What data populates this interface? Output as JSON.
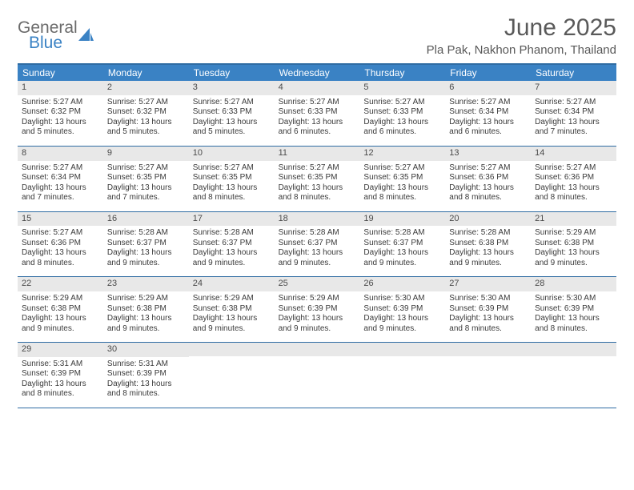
{
  "brand": {
    "line1": "General",
    "line2": "Blue"
  },
  "title": "June 2025",
  "location": "Pla Pak, Nakhon Phanom, Thailand",
  "colors": {
    "header_bg": "#3a82c4",
    "border": "#2f6ca3",
    "daynum_bg": "#e8e8e8",
    "text": "#3a3a3a",
    "title_color": "#595959"
  },
  "day_headers": [
    "Sunday",
    "Monday",
    "Tuesday",
    "Wednesday",
    "Thursday",
    "Friday",
    "Saturday"
  ],
  "weeks": [
    [
      {
        "n": "1",
        "sunrise": "5:27 AM",
        "sunset": "6:32 PM",
        "daylight": "13 hours and 5 minutes."
      },
      {
        "n": "2",
        "sunrise": "5:27 AM",
        "sunset": "6:32 PM",
        "daylight": "13 hours and 5 minutes."
      },
      {
        "n": "3",
        "sunrise": "5:27 AM",
        "sunset": "6:33 PM",
        "daylight": "13 hours and 5 minutes."
      },
      {
        "n": "4",
        "sunrise": "5:27 AM",
        "sunset": "6:33 PM",
        "daylight": "13 hours and 6 minutes."
      },
      {
        "n": "5",
        "sunrise": "5:27 AM",
        "sunset": "6:33 PM",
        "daylight": "13 hours and 6 minutes."
      },
      {
        "n": "6",
        "sunrise": "5:27 AM",
        "sunset": "6:34 PM",
        "daylight": "13 hours and 6 minutes."
      },
      {
        "n": "7",
        "sunrise": "5:27 AM",
        "sunset": "6:34 PM",
        "daylight": "13 hours and 7 minutes."
      }
    ],
    [
      {
        "n": "8",
        "sunrise": "5:27 AM",
        "sunset": "6:34 PM",
        "daylight": "13 hours and 7 minutes."
      },
      {
        "n": "9",
        "sunrise": "5:27 AM",
        "sunset": "6:35 PM",
        "daylight": "13 hours and 7 minutes."
      },
      {
        "n": "10",
        "sunrise": "5:27 AM",
        "sunset": "6:35 PM",
        "daylight": "13 hours and 8 minutes."
      },
      {
        "n": "11",
        "sunrise": "5:27 AM",
        "sunset": "6:35 PM",
        "daylight": "13 hours and 8 minutes."
      },
      {
        "n": "12",
        "sunrise": "5:27 AM",
        "sunset": "6:35 PM",
        "daylight": "13 hours and 8 minutes."
      },
      {
        "n": "13",
        "sunrise": "5:27 AM",
        "sunset": "6:36 PM",
        "daylight": "13 hours and 8 minutes."
      },
      {
        "n": "14",
        "sunrise": "5:27 AM",
        "sunset": "6:36 PM",
        "daylight": "13 hours and 8 minutes."
      }
    ],
    [
      {
        "n": "15",
        "sunrise": "5:27 AM",
        "sunset": "6:36 PM",
        "daylight": "13 hours and 8 minutes."
      },
      {
        "n": "16",
        "sunrise": "5:28 AM",
        "sunset": "6:37 PM",
        "daylight": "13 hours and 9 minutes."
      },
      {
        "n": "17",
        "sunrise": "5:28 AM",
        "sunset": "6:37 PM",
        "daylight": "13 hours and 9 minutes."
      },
      {
        "n": "18",
        "sunrise": "5:28 AM",
        "sunset": "6:37 PM",
        "daylight": "13 hours and 9 minutes."
      },
      {
        "n": "19",
        "sunrise": "5:28 AM",
        "sunset": "6:37 PM",
        "daylight": "13 hours and 9 minutes."
      },
      {
        "n": "20",
        "sunrise": "5:28 AM",
        "sunset": "6:38 PM",
        "daylight": "13 hours and 9 minutes."
      },
      {
        "n": "21",
        "sunrise": "5:29 AM",
        "sunset": "6:38 PM",
        "daylight": "13 hours and 9 minutes."
      }
    ],
    [
      {
        "n": "22",
        "sunrise": "5:29 AM",
        "sunset": "6:38 PM",
        "daylight": "13 hours and 9 minutes."
      },
      {
        "n": "23",
        "sunrise": "5:29 AM",
        "sunset": "6:38 PM",
        "daylight": "13 hours and 9 minutes."
      },
      {
        "n": "24",
        "sunrise": "5:29 AM",
        "sunset": "6:38 PM",
        "daylight": "13 hours and 9 minutes."
      },
      {
        "n": "25",
        "sunrise": "5:29 AM",
        "sunset": "6:39 PM",
        "daylight": "13 hours and 9 minutes."
      },
      {
        "n": "26",
        "sunrise": "5:30 AM",
        "sunset": "6:39 PM",
        "daylight": "13 hours and 9 minutes."
      },
      {
        "n": "27",
        "sunrise": "5:30 AM",
        "sunset": "6:39 PM",
        "daylight": "13 hours and 8 minutes."
      },
      {
        "n": "28",
        "sunrise": "5:30 AM",
        "sunset": "6:39 PM",
        "daylight": "13 hours and 8 minutes."
      }
    ],
    [
      {
        "n": "29",
        "sunrise": "5:31 AM",
        "sunset": "6:39 PM",
        "daylight": "13 hours and 8 minutes."
      },
      {
        "n": "30",
        "sunrise": "5:31 AM",
        "sunset": "6:39 PM",
        "daylight": "13 hours and 8 minutes."
      },
      null,
      null,
      null,
      null,
      null
    ]
  ],
  "labels": {
    "sunrise": "Sunrise: ",
    "sunset": "Sunset: ",
    "daylight": "Daylight: "
  }
}
